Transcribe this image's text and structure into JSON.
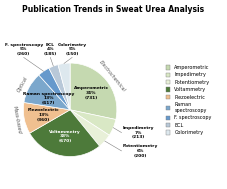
{
  "chart_data": {
    "type": "pie",
    "title": "Publication Trends in Sweat Urea Analysis",
    "categories": [
      "Amperometric",
      "Impedimetry",
      "Potentiometry",
      "Voltammetry",
      "Piezoelectric",
      "Raman\nspectroscopy",
      "F. spectroscopy",
      "ECL",
      "Colorimetry"
    ],
    "values": [
      34,
      7,
      6,
      33,
      13,
      13,
      5,
      4,
      5
    ],
    "value_labels": [
      "Amperometric\n34%\n(731)",
      "Impedimetry\n7%\n(213)",
      "Potentiometry\n6%\n(200)",
      "Voltammetry\n33%\n(670)",
      "Piezoelectric\n13%\n(360)",
      "Raman spectroscopy\n13%\n(417)",
      "F. spectroscopy\n5%\n(260)",
      "ECL\n4%\n(185)",
      "Colorimetry\n5%\n(150)"
    ],
    "colors": [
      "#c5d9b0",
      "#d9e8c5",
      "#e8f0d8",
      "#4d7a3a",
      "#f0c090",
      "#7ba7cc",
      "#6699cc",
      "#b8c8d8",
      "#dde8ee"
    ],
    "groups": [
      "Electrochemical",
      "Electrochemical",
      "Electrochemical",
      "Electrochemical",
      "Mass-based",
      "Optical",
      "Optical",
      "Optical",
      "Optical"
    ],
    "annotations": [
      "Electrochemical",
      "Optical",
      "Mass-based"
    ],
    "legend": "center left"
  }
}
